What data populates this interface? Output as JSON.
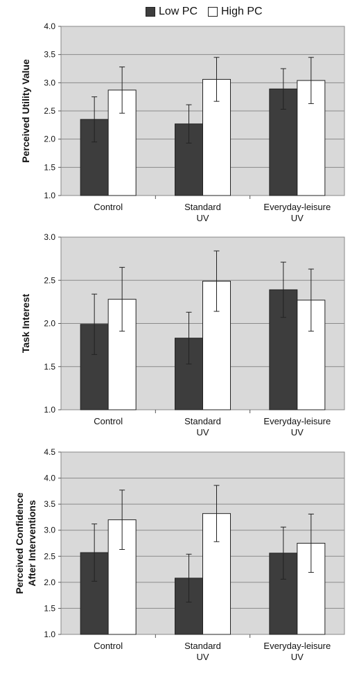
{
  "legend": {
    "items": [
      {
        "label": "Low PC",
        "color": "#3d3d3d"
      },
      {
        "label": "High PC",
        "color": "#ffffff"
      }
    ]
  },
  "chart_data": [
    {
      "type": "bar",
      "ylabel": "Perceived Utility Value",
      "ylim": [
        1.0,
        4.0
      ],
      "yticks": [
        "1.0",
        "1.5",
        "2.0",
        "2.5",
        "3.0",
        "3.5",
        "4.0"
      ],
      "categories": [
        [
          "Control"
        ],
        [
          "Standard",
          "UV"
        ],
        [
          "Everyday-leisure",
          "UV"
        ]
      ],
      "series": [
        {
          "name": "Low PC",
          "values": [
            2.35,
            2.27,
            2.89
          ],
          "err": [
            0.4,
            0.34,
            0.36
          ]
        },
        {
          "name": "High PC",
          "values": [
            2.87,
            3.06,
            3.04
          ],
          "err": [
            0.41,
            0.39,
            0.41
          ]
        }
      ],
      "grid": true
    },
    {
      "type": "bar",
      "ylabel": "Task Interest",
      "ylim": [
        1.0,
        3.0
      ],
      "yticks": [
        "1.0",
        "1.5",
        "2.0",
        "2.5",
        "3.0"
      ],
      "categories": [
        [
          "Control"
        ],
        [
          "Standard",
          "UV"
        ],
        [
          "Everyday-leisure",
          "UV"
        ]
      ],
      "series": [
        {
          "name": "Low PC",
          "values": [
            1.99,
            1.83,
            2.39
          ],
          "err": [
            0.35,
            0.3,
            0.32
          ]
        },
        {
          "name": "High PC",
          "values": [
            2.28,
            2.49,
            2.27
          ],
          "err": [
            0.37,
            0.35,
            0.36
          ]
        }
      ],
      "grid": true
    },
    {
      "type": "bar",
      "ylabel": [
        "Perceived Confidence",
        "After Interventions"
      ],
      "ylim": [
        1.0,
        4.5
      ],
      "yticks": [
        "1.0",
        "1.5",
        "2.0",
        "2.5",
        "3.0",
        "3.5",
        "4.0",
        "4.5"
      ],
      "categories": [
        [
          "Control"
        ],
        [
          "Standard",
          "UV"
        ],
        [
          "Everyday-leisure",
          "UV"
        ]
      ],
      "series": [
        {
          "name": "Low PC",
          "values": [
            2.57,
            2.08,
            2.56
          ],
          "err": [
            0.55,
            0.46,
            0.5
          ]
        },
        {
          "name": "High PC",
          "values": [
            3.2,
            3.32,
            2.75
          ],
          "err": [
            0.57,
            0.54,
            0.56
          ]
        }
      ],
      "grid": true
    }
  ]
}
